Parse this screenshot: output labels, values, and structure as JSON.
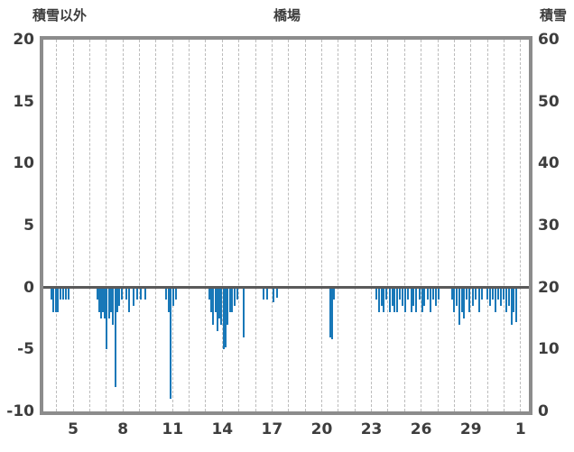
{
  "header": {
    "left_axis_title": "積雪以外",
    "title": "橋場",
    "right_axis_title": "積雪"
  },
  "chart_data": {
    "type": "bar",
    "title": "橋場",
    "left_axis": {
      "title": "積雪以外",
      "ticks": [
        20,
        15,
        10,
        5,
        0,
        -5,
        -10
      ],
      "min": -10,
      "max": 20
    },
    "right_axis": {
      "title": "積雪",
      "ticks": [
        60,
        50,
        40,
        30,
        20,
        10,
        0
      ],
      "min": 0,
      "max": 60
    },
    "x_axis": {
      "min": 3.2,
      "max": 32.5,
      "gridline_interval_days": 1,
      "grid_style": "dashed",
      "tick_labels": [
        {
          "day": 5,
          "label": "5"
        },
        {
          "day": 8,
          "label": "8"
        },
        {
          "day": 11,
          "label": "11"
        },
        {
          "day": 14,
          "label": "14"
        },
        {
          "day": 17,
          "label": "17"
        },
        {
          "day": 20,
          "label": "20"
        },
        {
          "day": 23,
          "label": "23"
        },
        {
          "day": 26,
          "label": "26"
        },
        {
          "day": 29,
          "label": "29"
        },
        {
          "day": 32,
          "label": "1"
        }
      ]
    },
    "bar_color": "#1878b8",
    "zero_line_value": 0,
    "bars": [
      [
        3.7,
        -1
      ],
      [
        3.82,
        -2
      ],
      [
        3.95,
        -2
      ],
      [
        4.08,
        -2
      ],
      [
        4.22,
        -1
      ],
      [
        4.38,
        -1
      ],
      [
        4.55,
        -1
      ],
      [
        4.75,
        -1
      ],
      [
        6.45,
        -1
      ],
      [
        6.57,
        -2
      ],
      [
        6.68,
        -2.5
      ],
      [
        6.8,
        -2
      ],
      [
        6.92,
        -2.5
      ],
      [
        7.03,
        -5
      ],
      [
        7.15,
        -2.5
      ],
      [
        7.28,
        -2
      ],
      [
        7.42,
        -3
      ],
      [
        7.55,
        -8
      ],
      [
        7.68,
        -2
      ],
      [
        7.8,
        -1.5
      ],
      [
        7.95,
        -1
      ],
      [
        8.2,
        -1
      ],
      [
        8.4,
        -2
      ],
      [
        8.62,
        -1.5
      ],
      [
        8.85,
        -1
      ],
      [
        9.1,
        -1
      ],
      [
        9.35,
        -1
      ],
      [
        10.6,
        -1
      ],
      [
        10.75,
        -2
      ],
      [
        10.88,
        -9
      ],
      [
        11.02,
        -1.5
      ],
      [
        11.18,
        -1
      ],
      [
        13.2,
        -1
      ],
      [
        13.32,
        -2
      ],
      [
        13.45,
        -3
      ],
      [
        13.58,
        -2
      ],
      [
        13.7,
        -3.5
      ],
      [
        13.82,
        -2.5
      ],
      [
        13.95,
        -3
      ],
      [
        14.08,
        -5
      ],
      [
        14.2,
        -4.8
      ],
      [
        14.33,
        -3
      ],
      [
        14.47,
        -2
      ],
      [
        14.6,
        -2
      ],
      [
        14.75,
        -1.5
      ],
      [
        14.9,
        -1
      ],
      [
        15.3,
        -4
      ],
      [
        16.5,
        -1
      ],
      [
        16.7,
        -1
      ],
      [
        17.1,
        -1.2
      ],
      [
        17.3,
        -0.8
      ],
      [
        20.5,
        -4
      ],
      [
        20.62,
        -4.2
      ],
      [
        20.75,
        -1
      ],
      [
        23.3,
        -1
      ],
      [
        23.45,
        -2
      ],
      [
        23.6,
        -1.5
      ],
      [
        23.75,
        -2
      ],
      [
        23.9,
        -1
      ],
      [
        24.1,
        -2
      ],
      [
        24.25,
        -1.5
      ],
      [
        24.4,
        -2
      ],
      [
        24.55,
        -2
      ],
      [
        24.7,
        -1
      ],
      [
        24.9,
        -1.5
      ],
      [
        25.05,
        -2
      ],
      [
        25.2,
        -1
      ],
      [
        25.4,
        -2
      ],
      [
        25.55,
        -1.5
      ],
      [
        25.7,
        -2
      ],
      [
        25.9,
        -1
      ],
      [
        26.05,
        -2
      ],
      [
        26.2,
        -1.5
      ],
      [
        26.4,
        -1
      ],
      [
        26.55,
        -2
      ],
      [
        26.7,
        -1
      ],
      [
        26.9,
        -1.5
      ],
      [
        27.05,
        -1
      ],
      [
        27.85,
        -1
      ],
      [
        28.0,
        -2
      ],
      [
        28.15,
        -1.5
      ],
      [
        28.3,
        -3
      ],
      [
        28.45,
        -2
      ],
      [
        28.6,
        -2.5
      ],
      [
        28.75,
        -1
      ],
      [
        28.9,
        -2
      ],
      [
        29.1,
        -1.5
      ],
      [
        29.3,
        -1
      ],
      [
        29.5,
        -2
      ],
      [
        29.65,
        -1
      ],
      [
        30.0,
        -1
      ],
      [
        30.15,
        -1.5
      ],
      [
        30.3,
        -1
      ],
      [
        30.5,
        -2
      ],
      [
        30.65,
        -1
      ],
      [
        30.8,
        -1.5
      ],
      [
        31.0,
        -1
      ],
      [
        31.15,
        -2
      ],
      [
        31.3,
        -1.5
      ],
      [
        31.45,
        -3
      ],
      [
        31.6,
        -2
      ],
      [
        31.75,
        -2.8
      ]
    ]
  }
}
